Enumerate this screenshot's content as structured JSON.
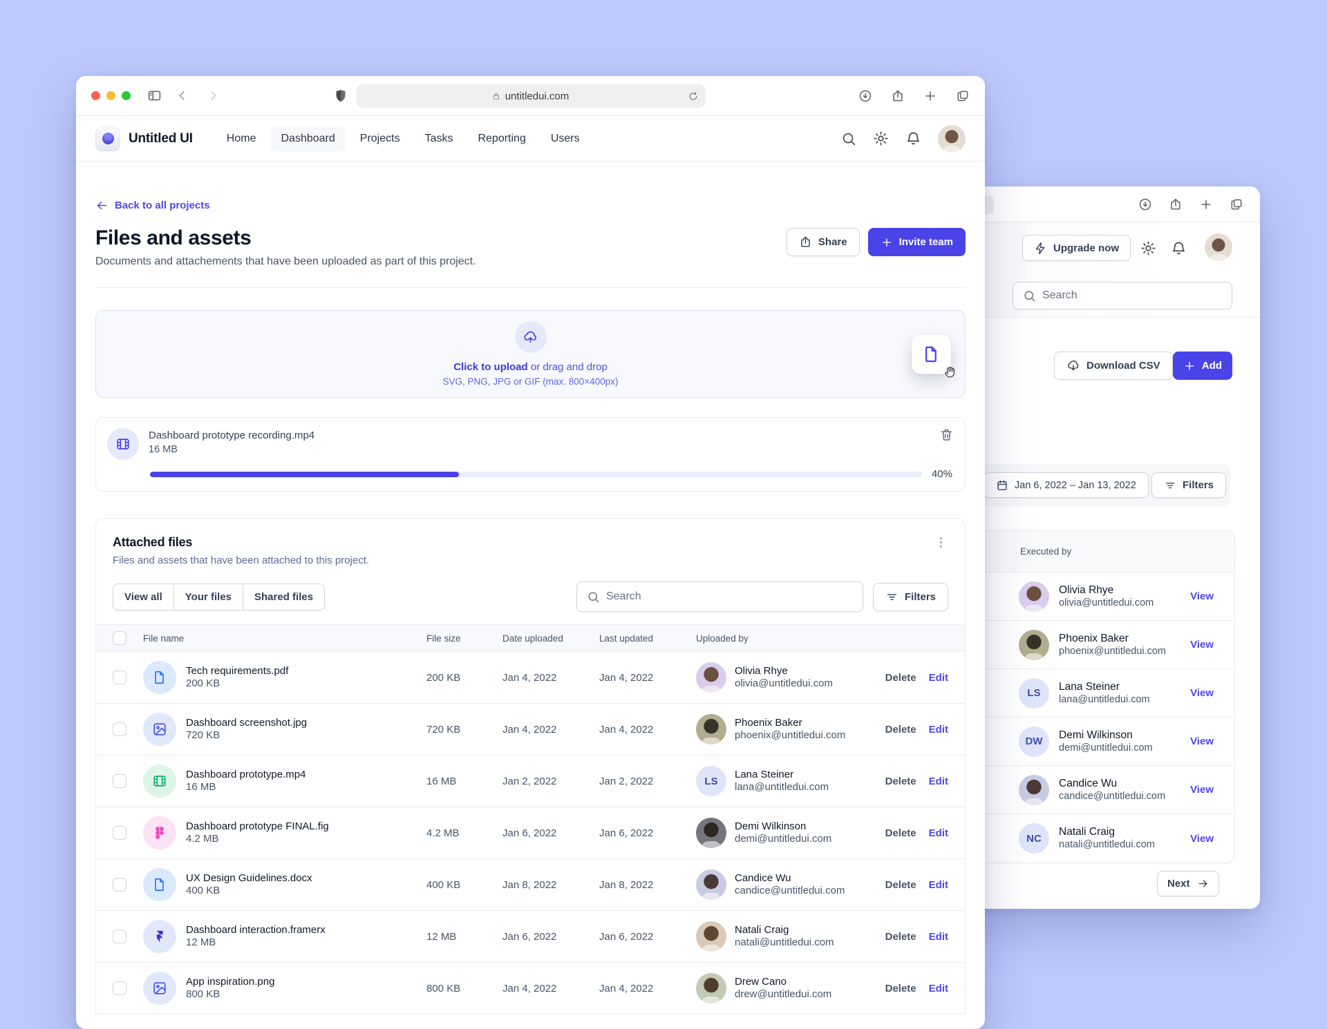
{
  "colors": {
    "page_bg": "#BEC9FB",
    "accent": "#4A43E8",
    "link": "#4F46E5",
    "text_dark": "#101828",
    "text_gray": "#475467",
    "border": "#EAECF0",
    "progress_track": "#E9EDFB"
  },
  "browser": {
    "url": "untitledui.com"
  },
  "nav": {
    "brand": "Untitled UI",
    "active": "Dashboard",
    "items": [
      {
        "label": "Home"
      },
      {
        "label": "Dashboard"
      },
      {
        "label": "Projects"
      },
      {
        "label": "Tasks"
      },
      {
        "label": "Reporting"
      },
      {
        "label": "Users"
      }
    ]
  },
  "page": {
    "back": "Back to all projects",
    "title": "Files and assets",
    "subtitle": "Documents and attachements that have been uploaded as part of this project.",
    "share": "Share",
    "invite": "Invite team"
  },
  "upload": {
    "cta": "Click to upload",
    "cta_rest": "or drag and drop",
    "hint": "SVG, PNG, JPG or GIF (max. 800×400px)"
  },
  "uploading": {
    "name": "Dashboard prototype recording.mp4",
    "size": "16 MB",
    "progress": 40,
    "progress_label": "40%"
  },
  "attached": {
    "title": "Attached files",
    "subtitle": "Files and assets that have been attached to this project.",
    "tabs": [
      {
        "label": "View all"
      },
      {
        "label": "Your files"
      },
      {
        "label": "Shared files"
      }
    ],
    "search_placeholder": "Search",
    "filters": "Filters",
    "columns": {
      "name": "File name",
      "size": "File size",
      "uploaded": "Date uploaded",
      "updated": "Last updated",
      "by": "Uploaded by"
    },
    "actions": {
      "delete": "Delete",
      "edit": "Edit"
    },
    "rows": [
      {
        "icon": "file",
        "name": "Tech requirements.pdf",
        "size": "200 KB",
        "file_size": "200 KB",
        "date_uploaded": "Jan 4, 2022",
        "last_updated": "Jan 4, 2022",
        "user": {
          "name": "Olivia Rhye",
          "email": "olivia@untitledui.com"
        }
      },
      {
        "icon": "image",
        "name": "Dashboard screenshot.jpg",
        "size": "720 KB",
        "file_size": "720 KB",
        "date_uploaded": "Jan 4, 2022",
        "last_updated": "Jan 4, 2022",
        "user": {
          "name": "Phoenix Baker",
          "email": "phoenix@untitledui.com"
        }
      },
      {
        "icon": "video",
        "name": "Dashboard prototype.mp4",
        "size": "16 MB",
        "file_size": "16 MB",
        "date_uploaded": "Jan 2, 2022",
        "last_updated": "Jan 2, 2022",
        "user": {
          "name": "Lana Steiner",
          "email": "lana@untitledui.com",
          "initials": "LS"
        }
      },
      {
        "icon": "figma",
        "name": "Dashboard prototype FINAL.fig",
        "size": "4.2 MB",
        "file_size": "4.2 MB",
        "date_uploaded": "Jan 6, 2022",
        "last_updated": "Jan 6, 2022",
        "user": {
          "name": "Demi Wilkinson",
          "email": "demi@untitledui.com"
        }
      },
      {
        "icon": "file",
        "name": "UX Design Guidelines.docx",
        "size": "400 KB",
        "file_size": "400 KB",
        "date_uploaded": "Jan 8, 2022",
        "last_updated": "Jan 8, 2022",
        "user": {
          "name": "Candice Wu",
          "email": "candice@untitledui.com"
        }
      },
      {
        "icon": "framer",
        "name": "Dashboard interaction.framerx",
        "size": "12 MB",
        "file_size": "12 MB",
        "date_uploaded": "Jan 6, 2022",
        "last_updated": "Jan 6, 2022",
        "user": {
          "name": "Natali Craig",
          "email": "natali@untitledui.com"
        }
      },
      {
        "icon": "image",
        "name": "App inspiration.png",
        "size": "800 KB",
        "file_size": "800 KB",
        "date_uploaded": "Jan 4, 2022",
        "last_updated": "Jan 4, 2022",
        "user": {
          "name": "Drew Cano",
          "email": "drew@untitledui.com"
        }
      }
    ]
  },
  "window2": {
    "upgrade": "Upgrade now",
    "search_placeholder": "Search",
    "download_csv": "Download CSV",
    "add": "Add",
    "date_range": "Jan 6, 2022 – Jan 13, 2022",
    "filters": "Filters",
    "executed": {
      "header": "Executed by",
      "view": "View",
      "next": "Next",
      "rows": [
        {
          "name": "Olivia Rhye",
          "email": "olivia@untitledui.com"
        },
        {
          "name": "Phoenix Baker",
          "email": "phoenix@untitledui.com"
        },
        {
          "name": "Lana Steiner",
          "email": "lana@untitledui.com",
          "initials": "LS"
        },
        {
          "name": "Demi Wilkinson",
          "email": "demi@untitledui.com",
          "initials": "DW"
        },
        {
          "name": "Candice Wu",
          "email": "candice@untitledui.com"
        },
        {
          "name": "Natali Craig",
          "email": "natali@untitledui.com",
          "initials": "NC"
        }
      ]
    }
  }
}
